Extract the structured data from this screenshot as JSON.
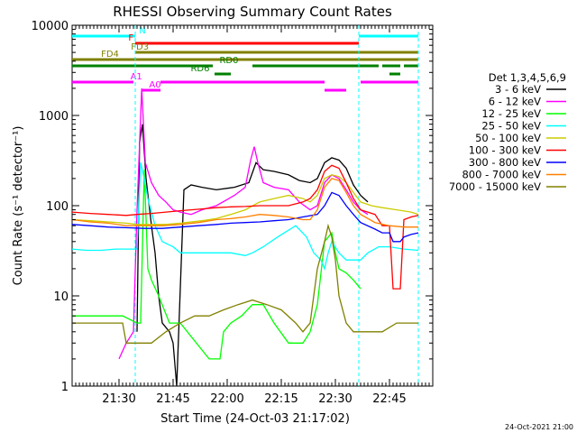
{
  "chart_data": {
    "type": "line",
    "title": "RHESSI Observing Summary Count Rates",
    "xlabel": "Start Time (24-Oct-03 21:17:02)",
    "ylabel": "Count Rate (s⁻¹ detector⁻¹)",
    "yscale": "log",
    "ylim": [
      1,
      10000
    ],
    "xlim_minutes": [
      0,
      100
    ],
    "x_units": "minutes after 21:17:02",
    "xticks": [
      {
        "label": "21:30",
        "x": 13
      },
      {
        "label": "21:45",
        "x": 28
      },
      {
        "label": "22:00",
        "x": 43
      },
      {
        "label": "22:15",
        "x": 58
      },
      {
        "label": "22:30",
        "x": 73
      },
      {
        "label": "22:45",
        "x": 88
      }
    ],
    "yticks": [
      {
        "label": "1",
        "v": 1
      },
      {
        "label": "10",
        "v": 10
      },
      {
        "label": "100",
        "v": 100
      },
      {
        "label": "1000",
        "v": 1000
      },
      {
        "label": "10000",
        "v": 10000
      }
    ],
    "legend_title": "Det 1,3,4,5,6,9",
    "legend_position": "right",
    "series": [
      {
        "name": "3 - 6 keV",
        "color": "#000000",
        "points": [
          [
            18,
            4
          ],
          [
            18.7,
            500
          ],
          [
            19.5,
            800
          ],
          [
            20.5,
            200
          ],
          [
            22,
            60
          ],
          [
            23,
            30
          ],
          [
            24,
            10
          ],
          [
            25,
            5
          ],
          [
            27,
            4
          ],
          [
            28,
            3
          ],
          [
            29,
            1
          ],
          [
            31,
            150
          ],
          [
            33,
            170
          ],
          [
            36,
            160
          ],
          [
            40,
            150
          ],
          [
            45,
            160
          ],
          [
            49,
            180
          ],
          [
            51,
            300
          ],
          [
            53,
            250
          ],
          [
            56,
            240
          ],
          [
            60,
            220
          ],
          [
            63,
            190
          ],
          [
            66,
            180
          ],
          [
            68,
            200
          ],
          [
            70,
            300
          ],
          [
            72,
            340
          ],
          [
            74,
            320
          ],
          [
            76,
            260
          ],
          [
            78,
            170
          ],
          [
            80,
            130
          ],
          [
            82,
            110
          ]
        ]
      },
      {
        "name": "6 - 12 keV",
        "color": "#ff00ff",
        "points": [
          [
            13,
            2
          ],
          [
            15,
            3
          ],
          [
            17,
            4
          ],
          [
            18,
            90
          ],
          [
            19.3,
            2000
          ],
          [
            20.3,
            300
          ],
          [
            22,
            180
          ],
          [
            24,
            130
          ],
          [
            26,
            110
          ],
          [
            28,
            90
          ],
          [
            30,
            85
          ],
          [
            33,
            80
          ],
          [
            36,
            90
          ],
          [
            40,
            100
          ],
          [
            45,
            130
          ],
          [
            48,
            160
          ],
          [
            49.5,
            320
          ],
          [
            50.5,
            450
          ],
          [
            51.5,
            300
          ],
          [
            53,
            180
          ],
          [
            56,
            160
          ],
          [
            60,
            150
          ],
          [
            63,
            110
          ],
          [
            66,
            90
          ],
          [
            68,
            100
          ],
          [
            70,
            180
          ],
          [
            72,
            220
          ],
          [
            74,
            200
          ],
          [
            76,
            150
          ],
          [
            78,
            110
          ],
          [
            80,
            90
          ],
          [
            82,
            80
          ]
        ]
      },
      {
        "name": "12 - 25 keV",
        "color": "#00ff00",
        "points": [
          [
            0,
            6
          ],
          [
            5,
            6
          ],
          [
            10,
            6
          ],
          [
            14,
            6
          ],
          [
            18,
            5
          ],
          [
            19,
            5
          ],
          [
            20,
            250
          ],
          [
            21,
            20
          ],
          [
            22,
            15
          ],
          [
            24,
            10
          ],
          [
            27,
            5
          ],
          [
            30,
            5
          ],
          [
            38,
            2
          ],
          [
            41,
            2
          ],
          [
            42,
            4
          ],
          [
            44,
            5
          ],
          [
            47,
            6
          ],
          [
            50,
            8
          ],
          [
            53,
            8
          ],
          [
            56,
            5
          ],
          [
            60,
            3
          ],
          [
            64,
            3
          ],
          [
            66,
            4
          ],
          [
            68,
            8
          ],
          [
            70,
            40
          ],
          [
            72,
            50
          ],
          [
            73,
            30
          ],
          [
            74,
            20
          ],
          [
            76,
            18
          ],
          [
            78,
            15
          ],
          [
            80,
            12
          ]
        ]
      },
      {
        "name": "25 - 50 keV",
        "color": "#00ffff",
        "points": [
          [
            0,
            33
          ],
          [
            4,
            32
          ],
          [
            8,
            32
          ],
          [
            12,
            33
          ],
          [
            16,
            33
          ],
          [
            18,
            33
          ],
          [
            19,
            300
          ],
          [
            20,
            200
          ],
          [
            21,
            120
          ],
          [
            23,
            60
          ],
          [
            25,
            40
          ],
          [
            28,
            35
          ],
          [
            30,
            30
          ],
          [
            36,
            30
          ],
          [
            40,
            30
          ],
          [
            44,
            30
          ],
          [
            48,
            28
          ],
          [
            50,
            30
          ],
          [
            53,
            35
          ],
          [
            57,
            45
          ],
          [
            62,
            60
          ],
          [
            65,
            45
          ],
          [
            67,
            30
          ],
          [
            69,
            25
          ],
          [
            70,
            20
          ],
          [
            71,
            30
          ],
          [
            72,
            40
          ],
          [
            74,
            30
          ],
          [
            76,
            25
          ],
          [
            78,
            25
          ],
          [
            80,
            25
          ],
          [
            82,
            30
          ],
          [
            85,
            35
          ],
          [
            88,
            35
          ],
          [
            92,
            33
          ],
          [
            96,
            32
          ]
        ]
      },
      {
        "name": "50 - 100 keV",
        "color": "#cccc00",
        "points": [
          [
            0,
            70
          ],
          [
            5,
            68
          ],
          [
            10,
            66
          ],
          [
            15,
            64
          ],
          [
            18,
            62
          ],
          [
            22,
            62
          ],
          [
            26,
            62
          ],
          [
            30,
            64
          ],
          [
            36,
            68
          ],
          [
            40,
            72
          ],
          [
            44,
            80
          ],
          [
            48,
            90
          ],
          [
            52,
            110
          ],
          [
            56,
            120
          ],
          [
            60,
            130
          ],
          [
            64,
            120
          ],
          [
            66,
            110
          ],
          [
            68,
            130
          ],
          [
            70,
            200
          ],
          [
            72,
            220
          ],
          [
            74,
            210
          ],
          [
            76,
            180
          ],
          [
            78,
            140
          ],
          [
            80,
            110
          ],
          [
            83,
            100
          ],
          [
            86,
            95
          ],
          [
            90,
            90
          ],
          [
            94,
            85
          ],
          [
            96,
            80
          ]
        ]
      },
      {
        "name": "100 - 300 keV",
        "color": "#ff0000",
        "points": [
          [
            0,
            85
          ],
          [
            5,
            82
          ],
          [
            10,
            80
          ],
          [
            15,
            78
          ],
          [
            18,
            80
          ],
          [
            22,
            82
          ],
          [
            26,
            85
          ],
          [
            30,
            88
          ],
          [
            36,
            92
          ],
          [
            40,
            95
          ],
          [
            44,
            97
          ],
          [
            48,
            98
          ],
          [
            52,
            100
          ],
          [
            56,
            100
          ],
          [
            60,
            100
          ],
          [
            64,
            110
          ],
          [
            66,
            120
          ],
          [
            68,
            150
          ],
          [
            70,
            240
          ],
          [
            72,
            280
          ],
          [
            74,
            260
          ],
          [
            76,
            180
          ],
          [
            78,
            120
          ],
          [
            80,
            90
          ],
          [
            84,
            80
          ],
          [
            86,
            60
          ],
          [
            88,
            60
          ],
          [
            89,
            12
          ],
          [
            91,
            12
          ],
          [
            92,
            70
          ],
          [
            94,
            75
          ],
          [
            96,
            78
          ]
        ]
      },
      {
        "name": "300 - 800 keV",
        "color": "#0000ff",
        "points": [
          [
            0,
            62
          ],
          [
            5,
            60
          ],
          [
            10,
            58
          ],
          [
            15,
            57
          ],
          [
            20,
            56
          ],
          [
            25,
            56
          ],
          [
            30,
            58
          ],
          [
            35,
            60
          ],
          [
            40,
            62
          ],
          [
            44,
            64
          ],
          [
            48,
            65
          ],
          [
            52,
            66
          ],
          [
            56,
            68
          ],
          [
            60,
            70
          ],
          [
            64,
            75
          ],
          [
            68,
            80
          ],
          [
            70,
            100
          ],
          [
            72,
            140
          ],
          [
            74,
            130
          ],
          [
            76,
            100
          ],
          [
            78,
            80
          ],
          [
            80,
            65
          ],
          [
            84,
            55
          ],
          [
            86,
            50
          ],
          [
            88,
            50
          ],
          [
            89,
            40
          ],
          [
            91,
            40
          ],
          [
            92,
            45
          ],
          [
            94,
            48
          ],
          [
            96,
            50
          ]
        ]
      },
      {
        "name": "800 - 7000 keV",
        "color": "#ff8000",
        "points": [
          [
            0,
            70
          ],
          [
            5,
            66
          ],
          [
            10,
            64
          ],
          [
            15,
            60
          ],
          [
            20,
            60
          ],
          [
            25,
            60
          ],
          [
            30,
            62
          ],
          [
            35,
            65
          ],
          [
            40,
            70
          ],
          [
            44,
            72
          ],
          [
            48,
            75
          ],
          [
            52,
            80
          ],
          [
            56,
            78
          ],
          [
            60,
            75
          ],
          [
            64,
            70
          ],
          [
            66,
            70
          ],
          [
            68,
            90
          ],
          [
            70,
            160
          ],
          [
            72,
            200
          ],
          [
            74,
            190
          ],
          [
            76,
            140
          ],
          [
            78,
            100
          ],
          [
            80,
            80
          ],
          [
            84,
            65
          ],
          [
            88,
            60
          ],
          [
            92,
            58
          ],
          [
            96,
            58
          ]
        ]
      },
      {
        "name": "7000 - 15000 keV",
        "color": "#808000",
        "points": [
          [
            0,
            5
          ],
          [
            5,
            5
          ],
          [
            10,
            5
          ],
          [
            14,
            5
          ],
          [
            15,
            3
          ],
          [
            18,
            3
          ],
          [
            22,
            3
          ],
          [
            26,
            4
          ],
          [
            30,
            5
          ],
          [
            34,
            6
          ],
          [
            38,
            6
          ],
          [
            42,
            7
          ],
          [
            46,
            8
          ],
          [
            50,
            9
          ],
          [
            54,
            8
          ],
          [
            58,
            7
          ],
          [
            62,
            5
          ],
          [
            64,
            4
          ],
          [
            66,
            5
          ],
          [
            68,
            20
          ],
          [
            70,
            40
          ],
          [
            71,
            60
          ],
          [
            72,
            45
          ],
          [
            73,
            25
          ],
          [
            74,
            10
          ],
          [
            76,
            5
          ],
          [
            78,
            4
          ],
          [
            82,
            4
          ],
          [
            86,
            4
          ],
          [
            90,
            5
          ],
          [
            94,
            5
          ],
          [
            96,
            5
          ]
        ]
      }
    ],
    "observing_flags": [
      {
        "label": "N",
        "color": "#00ffff",
        "segments": [
          [
            0,
            17.5
          ],
          [
            79.5,
            96
          ]
        ],
        "label_at": 19.5
      },
      {
        "label": "F",
        "color": "#ff0000",
        "segments": [
          [
            17.5,
            79.5
          ]
        ],
        "label_at": 16.3
      },
      {
        "label": "FD3",
        "color": "#808000",
        "segments": [
          [
            17.5,
            96
          ]
        ],
        "label_at": 18.8
      },
      {
        "label": "FD4",
        "color": "#808000",
        "segments": [
          [
            0,
            96
          ]
        ],
        "label_at": 10.5
      },
      {
        "label": "RD0",
        "color": "#008000",
        "segments": [
          [
            0,
            39
          ],
          [
            50,
            85
          ],
          [
            86,
            91
          ],
          [
            92,
            96
          ]
        ],
        "label_at": 43.5
      },
      {
        "label": "RD6",
        "color": "#008000",
        "segments": [
          [
            39.5,
            44
          ],
          [
            88,
            91
          ]
        ],
        "label_at": 35.5
      },
      {
        "label": "A0",
        "color": "#ff00ff",
        "segments": [
          [
            19.5,
            24.5
          ],
          [
            70,
            76
          ]
        ],
        "label_at": 23
      },
      {
        "label": "A1",
        "color": "#ff00ff",
        "segments": [
          [
            0,
            17
          ],
          [
            24.5,
            70
          ],
          [
            80,
            96
          ]
        ],
        "label_at": 17.8
      }
    ]
  },
  "footer": {
    "date": "24-Oct-2021 21:00"
  }
}
